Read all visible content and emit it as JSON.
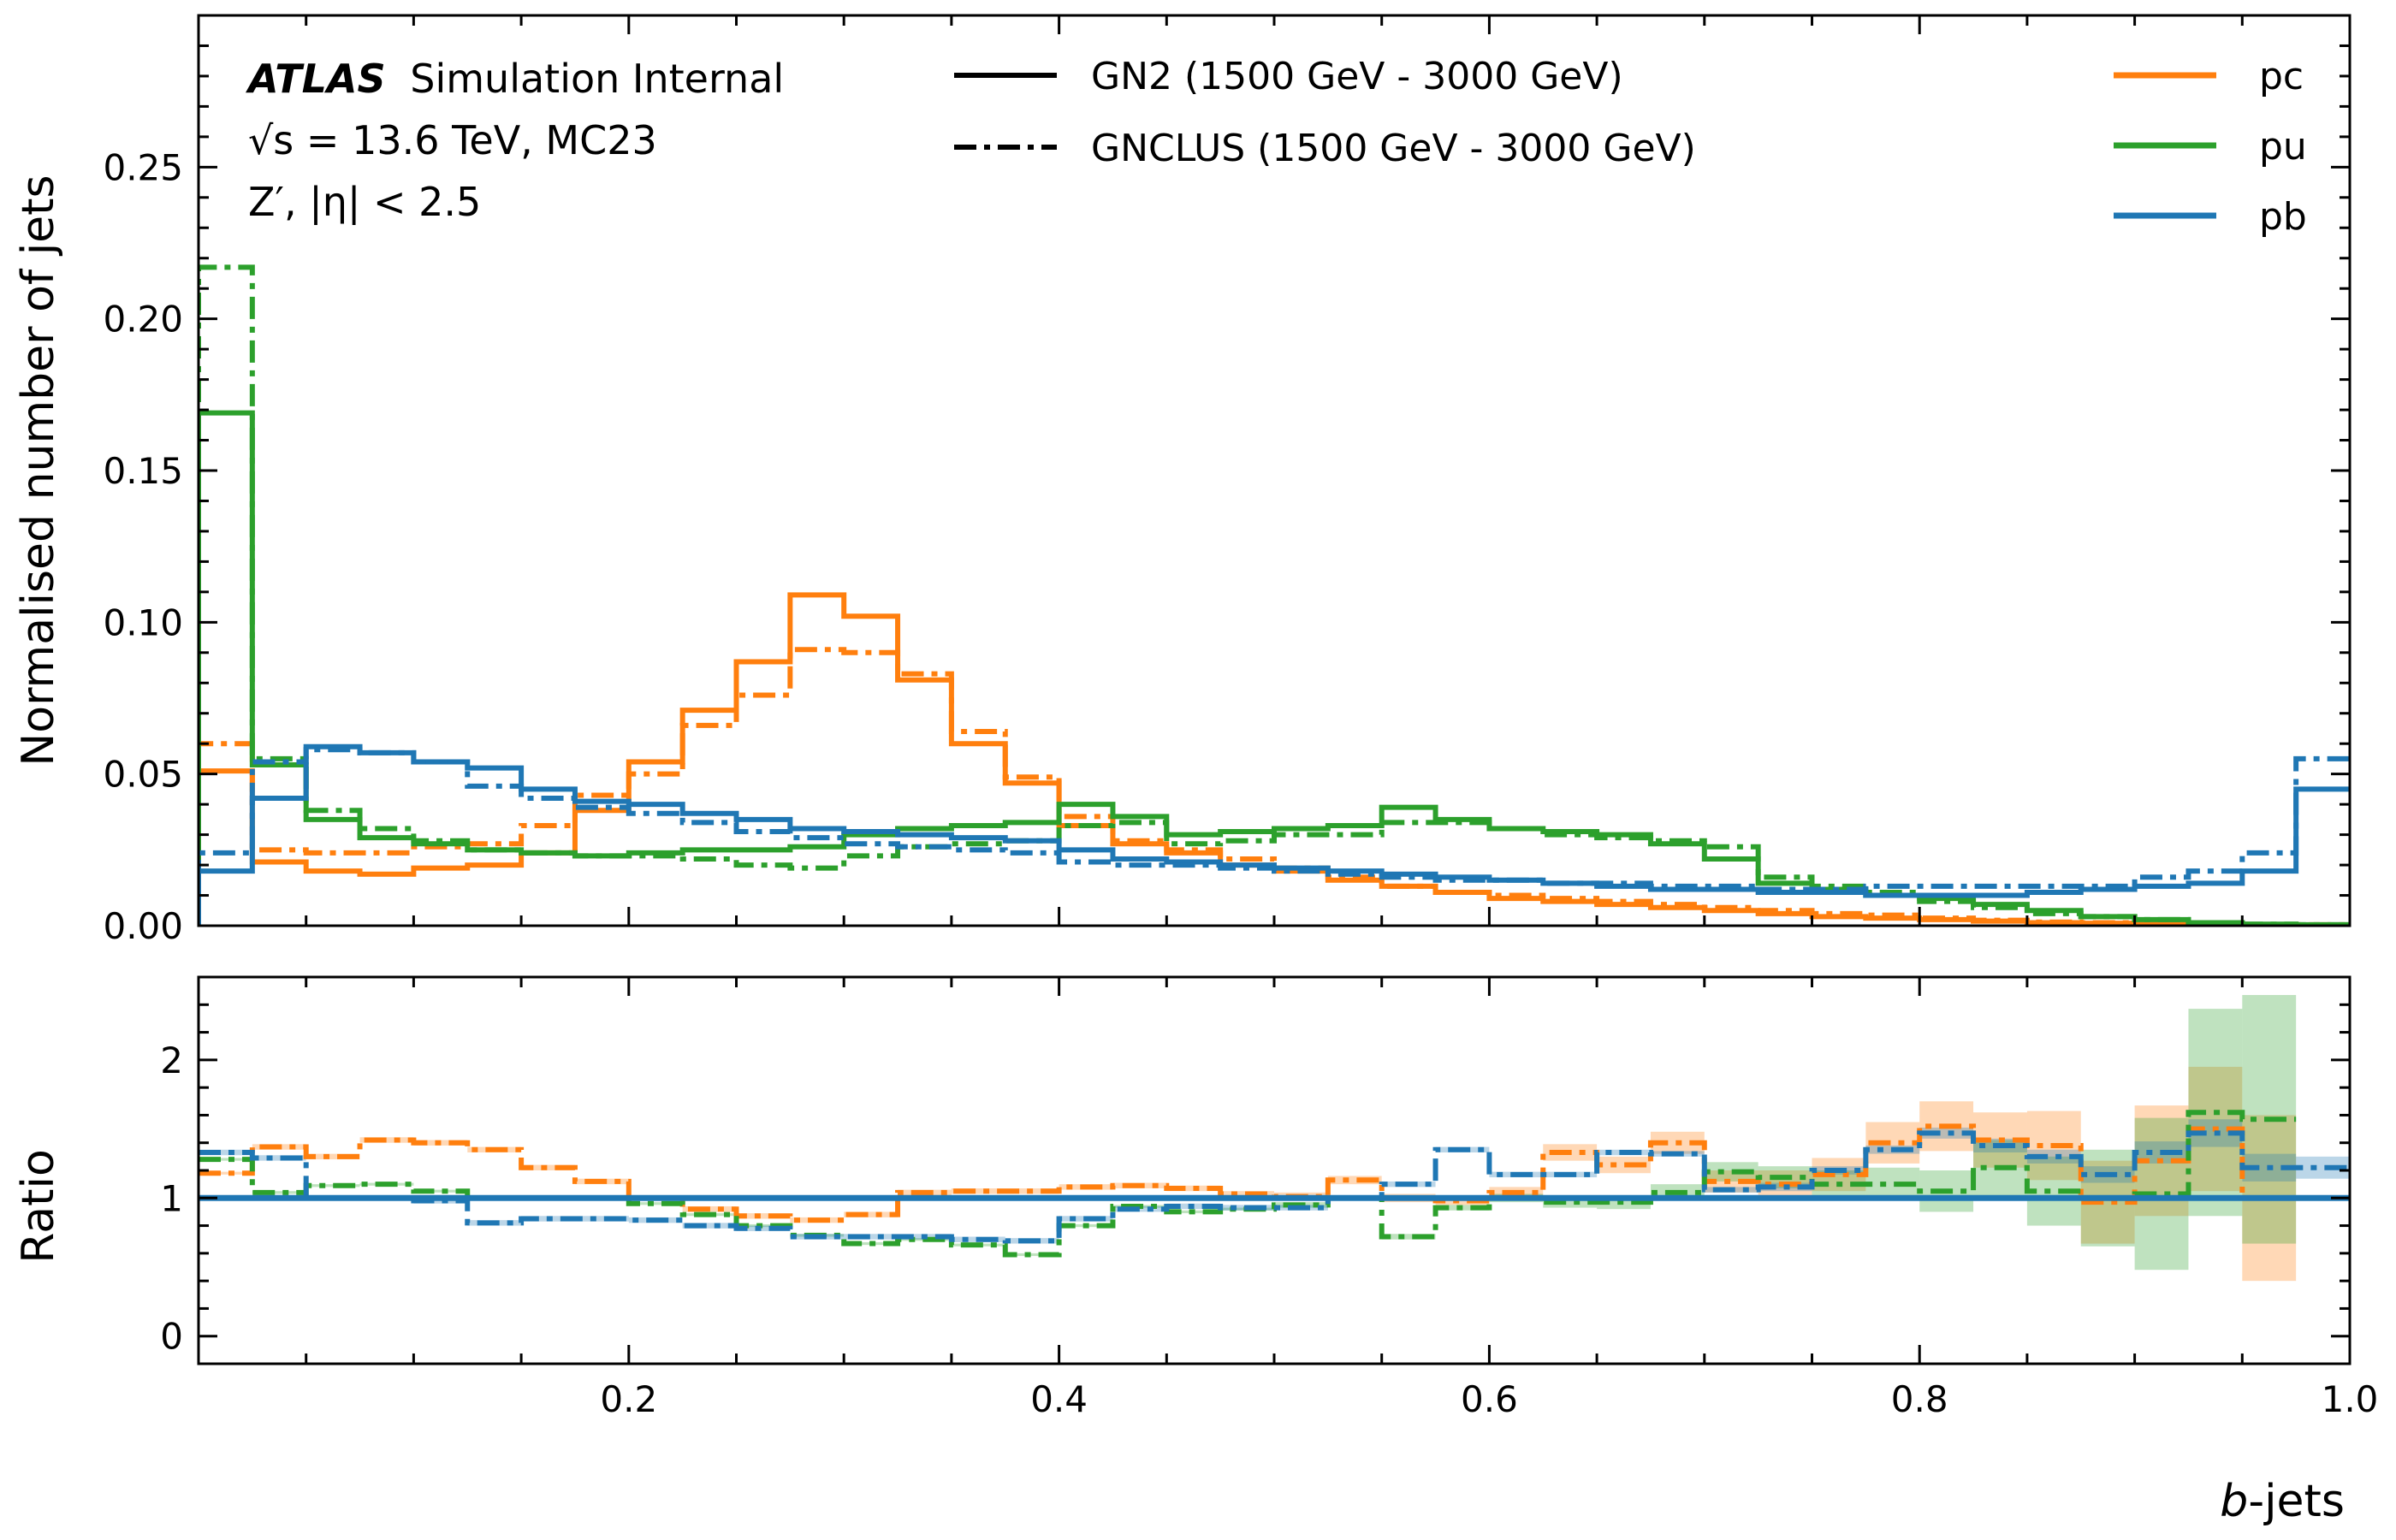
{
  "chart_data": [
    {
      "type": "line",
      "step": "histogram",
      "ylabel": "Normalised number of jets",
      "xlim": [
        0.0,
        1.0
      ],
      "ylim": [
        0.0,
        0.3
      ],
      "yticks": [
        "0.00",
        "0.05",
        "0.10",
        "0.15",
        "0.20",
        "0.25"
      ],
      "annotations": {
        "atlas": "ATLAS",
        "atlas_suffix": "Simulation Internal",
        "energy_line": "√s = 13.6 TeV, MC23",
        "sample_line": "Z′, |η| < 2.5"
      },
      "legend_styles": [
        {
          "label": "GN2 (1500 GeV - 3000 GeV)",
          "style": "solid"
        },
        {
          "label": "GNCLUS (1500 GeV - 3000 GeV)",
          "style": "dashdot"
        }
      ],
      "legend_colors": [
        {
          "label": "pc",
          "color": "#ff7f0e"
        },
        {
          "label": "pu",
          "color": "#2ca02c"
        },
        {
          "label": "pb",
          "color": "#1f77b4"
        }
      ],
      "bin_edges": [
        0.0,
        0.025,
        0.05,
        0.075,
        0.1,
        0.125,
        0.15,
        0.175,
        0.2,
        0.225,
        0.25,
        0.275,
        0.3,
        0.325,
        0.35,
        0.375,
        0.4,
        0.425,
        0.45,
        0.475,
        0.5,
        0.525,
        0.55,
        0.575,
        0.6,
        0.625,
        0.65,
        0.675,
        0.7,
        0.725,
        0.75,
        0.775,
        0.8,
        0.825,
        0.85,
        0.875,
        0.9,
        0.925,
        0.95,
        0.975,
        1.0
      ],
      "series": [
        {
          "name": "pc",
          "tagger": "GN2",
          "style": "solid",
          "color": "#ff7f0e",
          "values": [
            0.051,
            0.021,
            0.018,
            0.017,
            0.019,
            0.02,
            0.024,
            0.038,
            0.054,
            0.071,
            0.087,
            0.109,
            0.102,
            0.081,
            0.06,
            0.047,
            0.033,
            0.027,
            0.024,
            0.02,
            0.018,
            0.015,
            0.013,
            0.011,
            0.009,
            0.008,
            0.007,
            0.006,
            0.005,
            0.004,
            0.003,
            0.0025,
            0.002,
            0.0015,
            0.001,
            0.0008,
            0.0006,
            0.0004,
            0.0003,
            0.0002
          ]
        },
        {
          "name": "pc",
          "tagger": "GNCLUS",
          "style": "dashdot",
          "color": "#ff7f0e",
          "values": [
            0.06,
            0.025,
            0.024,
            0.024,
            0.026,
            0.027,
            0.033,
            0.043,
            0.05,
            0.066,
            0.076,
            0.091,
            0.09,
            0.083,
            0.064,
            0.049,
            0.036,
            0.028,
            0.025,
            0.022,
            0.019,
            0.016,
            0.013,
            0.011,
            0.01,
            0.009,
            0.008,
            0.007,
            0.006,
            0.005,
            0.004,
            0.0035,
            0.0025,
            0.0018,
            0.0012,
            0.001,
            0.0008,
            0.0006,
            0.0004,
            0.0003
          ]
        },
        {
          "name": "pu",
          "tagger": "GN2",
          "style": "solid",
          "color": "#2ca02c",
          "values": [
            0.169,
            0.053,
            0.035,
            0.029,
            0.027,
            0.025,
            0.024,
            0.023,
            0.024,
            0.025,
            0.025,
            0.026,
            0.03,
            0.032,
            0.033,
            0.034,
            0.04,
            0.036,
            0.03,
            0.031,
            0.032,
            0.033,
            0.039,
            0.035,
            0.032,
            0.031,
            0.03,
            0.027,
            0.022,
            0.014,
            0.012,
            0.01,
            0.009,
            0.007,
            0.005,
            0.003,
            0.002,
            0.001,
            0.0005,
            0.0003
          ]
        },
        {
          "name": "pu",
          "tagger": "GNCLUS",
          "style": "dashdot",
          "color": "#2ca02c",
          "values": [
            0.217,
            0.055,
            0.038,
            0.032,
            0.028,
            0.025,
            0.024,
            0.023,
            0.023,
            0.022,
            0.02,
            0.019,
            0.023,
            0.026,
            0.027,
            0.028,
            0.033,
            0.034,
            0.027,
            0.028,
            0.03,
            0.03,
            0.034,
            0.034,
            0.032,
            0.03,
            0.029,
            0.028,
            0.026,
            0.016,
            0.013,
            0.011,
            0.008,
            0.006,
            0.004,
            0.003,
            0.002,
            0.001,
            0.0005,
            0.0003
          ]
        },
        {
          "name": "pb",
          "tagger": "GN2",
          "style": "solid",
          "color": "#1f77b4",
          "values": [
            0.018,
            0.042,
            0.059,
            0.057,
            0.054,
            0.052,
            0.045,
            0.041,
            0.04,
            0.037,
            0.035,
            0.032,
            0.031,
            0.03,
            0.029,
            0.028,
            0.025,
            0.022,
            0.021,
            0.02,
            0.019,
            0.018,
            0.017,
            0.016,
            0.015,
            0.014,
            0.013,
            0.012,
            0.012,
            0.011,
            0.011,
            0.01,
            0.01,
            0.01,
            0.011,
            0.012,
            0.013,
            0.014,
            0.018,
            0.045
          ]
        },
        {
          "name": "pb",
          "tagger": "GNCLUS",
          "style": "dashdot",
          "color": "#1f77b4",
          "values": [
            0.024,
            0.054,
            0.058,
            0.057,
            0.054,
            0.046,
            0.042,
            0.039,
            0.037,
            0.034,
            0.031,
            0.029,
            0.027,
            0.026,
            0.025,
            0.024,
            0.021,
            0.02,
            0.02,
            0.019,
            0.018,
            0.017,
            0.016,
            0.015,
            0.015,
            0.014,
            0.014,
            0.013,
            0.013,
            0.012,
            0.012,
            0.013,
            0.013,
            0.013,
            0.013,
            0.013,
            0.016,
            0.018,
            0.024,
            0.055
          ]
        }
      ]
    },
    {
      "type": "line",
      "step": "histogram",
      "ylabel": "Ratio",
      "xlabel": "b-jets",
      "xlabel_italic": "b",
      "xlabel_rest": "-jets",
      "xlim": [
        0.0,
        1.0
      ],
      "ylim": [
        -0.2,
        2.6
      ],
      "xticks": [
        "0.2",
        "0.4",
        "0.6",
        "0.8",
        "1.0"
      ],
      "yticks": [
        "0",
        "1",
        "2"
      ],
      "bin_edges": [
        0.0,
        0.025,
        0.05,
        0.075,
        0.1,
        0.125,
        0.15,
        0.175,
        0.2,
        0.225,
        0.25,
        0.275,
        0.3,
        0.325,
        0.35,
        0.375,
        0.4,
        0.425,
        0.45,
        0.475,
        0.5,
        0.525,
        0.55,
        0.575,
        0.6,
        0.625,
        0.65,
        0.675,
        0.7,
        0.725,
        0.75,
        0.775,
        0.8,
        0.825,
        0.85,
        0.875,
        0.9,
        0.925,
        0.95,
        0.975,
        1.0
      ],
      "reference": 1.0,
      "reference_color": "#1f77b4",
      "series": [
        {
          "name": "pc",
          "color": "#ff7f0e",
          "values": [
            1.18,
            1.37,
            1.3,
            1.42,
            1.4,
            1.35,
            1.22,
            1.12,
            1.0,
            0.92,
            0.87,
            0.84,
            0.88,
            1.04,
            1.05,
            1.05,
            1.08,
            1.09,
            1.07,
            1.03,
            1.01,
            1.13,
            1.0,
            0.98,
            1.04,
            1.33,
            1.24,
            1.4,
            1.12,
            1.1,
            1.17,
            1.4,
            1.52,
            1.42,
            1.38,
            0.97,
            1.27,
            1.5,
            1.0,
            null
          ],
          "band": [
            0.01,
            0.02,
            0.02,
            0.02,
            0.02,
            0.02,
            0.02,
            0.02,
            0.02,
            0.02,
            0.02,
            0.02,
            0.02,
            0.02,
            0.02,
            0.02,
            0.02,
            0.02,
            0.02,
            0.02,
            0.03,
            0.03,
            0.03,
            0.03,
            0.04,
            0.06,
            0.06,
            0.08,
            0.08,
            0.1,
            0.12,
            0.15,
            0.18,
            0.2,
            0.25,
            0.3,
            0.4,
            0.45,
            0.6,
            null
          ]
        },
        {
          "name": "pu",
          "color": "#2ca02c",
          "values": [
            1.28,
            1.04,
            1.09,
            1.1,
            1.05,
            1.0,
            1.0,
            1.0,
            0.96,
            0.88,
            0.8,
            0.73,
            0.67,
            0.7,
            0.66,
            0.59,
            0.8,
            0.94,
            0.9,
            0.92,
            0.95,
            1.0,
            0.72,
            0.93,
            1.0,
            0.97,
            0.97,
            1.04,
            1.19,
            1.15,
            1.1,
            1.1,
            1.05,
            1.22,
            1.05,
            1.0,
            1.03,
            1.62,
            1.57,
            null
          ],
          "band": [
            0.01,
            0.01,
            0.01,
            0.01,
            0.01,
            0.01,
            0.01,
            0.01,
            0.01,
            0.01,
            0.01,
            0.01,
            0.01,
            0.01,
            0.01,
            0.01,
            0.01,
            0.01,
            0.01,
            0.01,
            0.02,
            0.02,
            0.02,
            0.02,
            0.03,
            0.04,
            0.05,
            0.06,
            0.07,
            0.08,
            0.1,
            0.12,
            0.15,
            0.2,
            0.25,
            0.35,
            0.55,
            0.75,
            0.9,
            null
          ]
        },
        {
          "name": "pb",
          "color": "#1f77b4",
          "values": [
            1.33,
            1.29,
            1.0,
            1.0,
            0.98,
            0.82,
            0.85,
            0.85,
            0.84,
            0.8,
            0.78,
            0.72,
            0.72,
            0.72,
            0.7,
            0.69,
            0.85,
            0.92,
            0.94,
            0.93,
            0.93,
            1.0,
            1.1,
            1.35,
            1.17,
            1.17,
            1.33,
            1.32,
            1.06,
            1.08,
            1.2,
            1.35,
            1.47,
            1.38,
            1.3,
            1.17,
            1.33,
            1.47,
            1.22,
            1.22
          ],
          "band": [
            0.02,
            0.02,
            0.02,
            0.02,
            0.02,
            0.02,
            0.02,
            0.02,
            0.02,
            0.02,
            0.02,
            0.02,
            0.02,
            0.02,
            0.02,
            0.02,
            0.02,
            0.02,
            0.02,
            0.02,
            0.02,
            0.02,
            0.02,
            0.02,
            0.02,
            0.02,
            0.02,
            0.02,
            0.02,
            0.03,
            0.03,
            0.03,
            0.04,
            0.05,
            0.05,
            0.06,
            0.08,
            0.1,
            0.1,
            0.08
          ]
        }
      ]
    }
  ]
}
